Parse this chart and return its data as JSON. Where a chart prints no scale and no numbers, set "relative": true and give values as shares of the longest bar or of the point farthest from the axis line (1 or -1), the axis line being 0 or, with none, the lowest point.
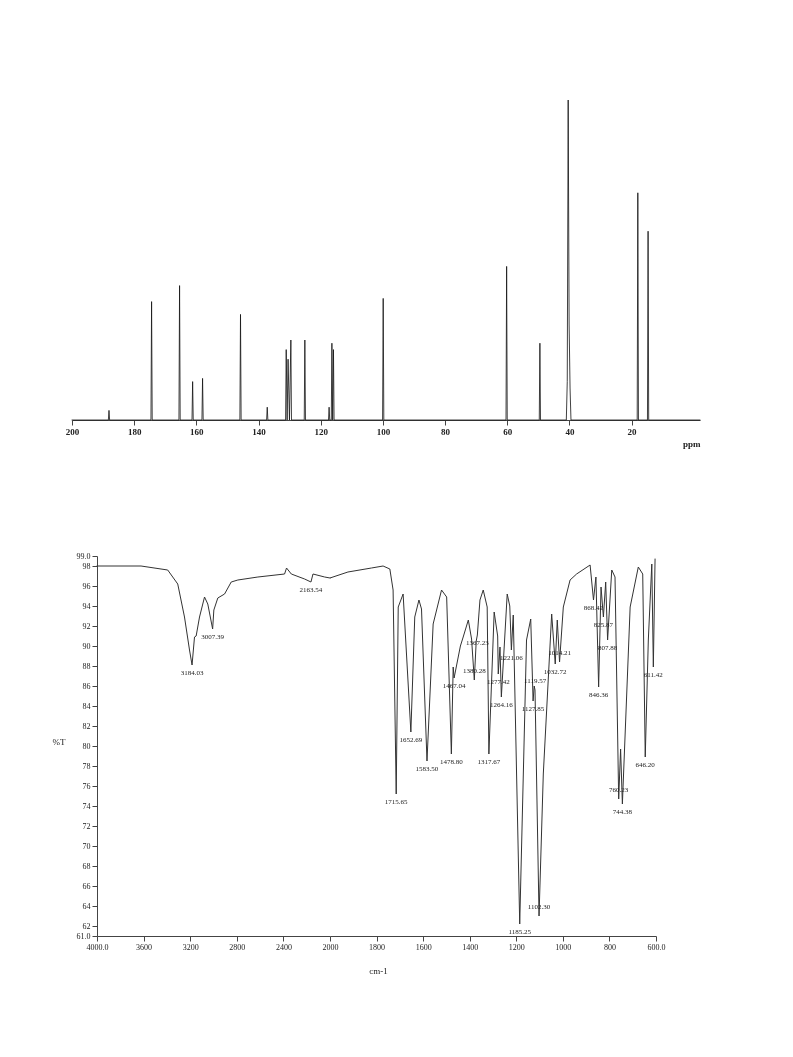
{
  "chart_data": [
    {
      "type": "line",
      "relative": true,
      "xlabel": "ppm",
      "xlim": [
        200,
        -2
      ],
      "xticks": [
        200,
        180,
        160,
        140,
        120,
        100,
        80,
        60,
        40,
        20
      ],
      "series": [
        {
          "color": "#111111",
          "x": [
            200,
            188.3,
            188.1,
            187.9,
            174.6,
            174.4,
            174.2,
            165.6,
            165.4,
            165.2,
            161.4,
            161.2,
            161,
            158.2,
            158,
            157.8,
            146,
            145.8,
            145.6,
            137.4,
            137.2,
            137,
            131.3,
            131.1,
            130.8,
            130.5,
            130.05,
            129.6,
            129.4,
            125.3,
            125.1,
            124.9,
            117.5,
            117.3,
            117.1,
            116.6,
            116.4,
            116.15,
            115.9,
            115.7,
            100.1,
            99.9,
            99.7,
            60.4,
            60.2,
            60,
            49.7,
            49.5,
            49.3,
            41,
            40.7,
            40.4,
            40.1,
            39.8,
            39.5,
            18.2,
            18,
            17.8,
            14.9,
            14.7,
            14.5,
            -2
          ],
          "values": [
            0,
            0,
            0.03,
            0,
            0,
            0.37,
            0,
            0,
            0.42,
            0,
            0,
            0.12,
            0,
            0,
            0.13,
            0,
            0,
            0.33,
            0,
            0,
            0.04,
            0,
            0,
            0.22,
            0,
            0.19,
            0,
            0.25,
            0,
            0,
            0.25,
            0,
            0,
            0.04,
            0,
            0,
            0.24,
            0,
            0.22,
            0,
            0,
            0.38,
            0,
            0,
            0.48,
            0,
            0,
            0.24,
            0,
            0,
            0.12,
            1.0,
            0.3,
            0.1,
            0,
            0,
            0.71,
            0,
            0,
            0.59,
            0,
            0
          ]
        }
      ]
    },
    {
      "type": "line",
      "ylabel": "%T",
      "xlim": [
        4000,
        2000
      ],
      "ylim": [
        61,
        99
      ],
      "xticks": [
        {
          "value": 4000,
          "label": "4000.0"
        },
        3600,
        3200,
        2800,
        2400,
        2000
      ],
      "yticks": [
        {
          "value": 61,
          "label": "61.0"
        },
        62,
        64,
        66,
        68,
        70,
        72,
        74,
        76,
        78,
        80,
        82,
        84,
        86,
        88,
        90,
        92,
        94,
        96,
        98,
        {
          "value": 99,
          "label": "99.0"
        }
      ],
      "series": [
        {
          "color": "#333333",
          "x": [
            4000,
            3622,
            3393,
            3307,
            3249,
            3206,
            3184.03,
            3163,
            3149,
            3120,
            3077,
            3049,
            3007.39,
            2997,
            2963,
            2905,
            2848,
            2791,
            2619,
            2390,
            2373,
            2332,
            2218,
            2163.54,
            2146,
            2046,
            2000
          ],
          "values": [
            98.0,
            98.0,
            97.6,
            96.2,
            92.9,
            89.6,
            88.1,
            90.9,
            91.0,
            92.9,
            94.9,
            94.2,
            91.7,
            93.6,
            94.8,
            95.2,
            96.4,
            96.6,
            96.9,
            97.2,
            97.8,
            97.2,
            96.7,
            96.4,
            97.2,
            96.9,
            96.8
          ]
        }
      ],
      "annotations": [
        {
          "text": "3184.03",
          "x": 3184.03,
          "y": 88.1
        },
        {
          "text": "3007.39",
          "x": 3007.39,
          "y": 91.7
        },
        {
          "text": "2163.54",
          "x": 2163.54,
          "y": 96.4
        }
      ]
    },
    {
      "type": "line",
      "xlabel": "cm-1",
      "xlim": [
        2000,
        600
      ],
      "ylim": [
        61,
        99
      ],
      "tick_labels": "x",
      "xticks": [
        1800,
        1600,
        1400,
        1200,
        1000,
        800,
        {
          "value": 600,
          "label": "600.0"
        }
      ],
      "series": [
        {
          "color": "#333333",
          "x": [
            2000,
            1923,
            1822,
            1772,
            1743,
            1729,
            1715.65,
            1707,
            1686,
            1652.69,
            1636,
            1618,
            1607,
            1583.5,
            1557,
            1521,
            1499,
            1478.8,
            1471,
            1467.04,
            1440,
            1428,
            1406,
            1392,
            1380.28,
            1372,
            1367.23,
            1356,
            1342,
            1325,
            1317.67,
            1295,
            1280,
            1277.42,
            1270,
            1264.16,
            1239,
            1228,
            1221.06,
            1213,
            1185.25,
            1156,
            1138,
            1127.85,
            1123,
            1119.57,
            1102.3,
            1084,
            1048,
            1032.72,
            1024,
            1014.21,
            998,
            969,
            941,
            883,
            868.42,
            858,
            846.36,
            836,
            825.87,
            816,
            807.88,
            790,
            776,
            760.23,
            752,
            744.38,
            711,
            676,
            657,
            646.2,
            633,
            618,
            611.42,
            604
          ],
          "values": [
            96.8,
            97.4,
            97.8,
            98.0,
            97.7,
            95.6,
            75.2,
            93.9,
            95.2,
            81.4,
            92.9,
            94.6,
            93.7,
            78.5,
            92.2,
            95.6,
            94.9,
            79.2,
            87.9,
            86.8,
            90.0,
            90.9,
            92.6,
            90.7,
            86.6,
            90.5,
            91.1,
            94.6,
            95.6,
            93.9,
            79.2,
            93.4,
            91.0,
            87.2,
            89.9,
            84.9,
            95.2,
            94.0,
            89.6,
            93.1,
            62.2,
            90.6,
            92.7,
            84.5,
            86.0,
            85.6,
            63.0,
            77.2,
            93.2,
            88.2,
            92.6,
            88.4,
            93.9,
            96.6,
            97.2,
            98.1,
            94.6,
            96.9,
            85.9,
            95.9,
            92.9,
            96.4,
            90.6,
            97.6,
            96.9,
            74.7,
            79.7,
            74.2,
            93.9,
            97.9,
            97.2,
            78.9,
            90.6,
            98.2,
            87.9,
            98.7
          ]
        }
      ],
      "annotations": [
        {
          "text": "1715.65",
          "x": 1715.65,
          "y": 75.2
        },
        {
          "text": "1652.69",
          "x": 1652.69,
          "y": 81.4
        },
        {
          "text": "1583.50",
          "x": 1583.5,
          "y": 78.5
        },
        {
          "text": "1478.80",
          "x": 1478.8,
          "y": 79.2
        },
        {
          "text": "1467.04",
          "x": 1467.04,
          "y": 86.8
        },
        {
          "text": "1380.28",
          "x": 1380.28,
          "y": 86.6
        },
        {
          "text": "1367.23",
          "x": 1367.23,
          "y": 91.1
        },
        {
          "text": "1317.67",
          "x": 1317.67,
          "y": 79.2
        },
        {
          "text": "1277.42",
          "x": 1277.42,
          "y": 87.2
        },
        {
          "text": "1264.16",
          "x": 1264.16,
          "y": 84.9
        },
        {
          "text": "1221.06",
          "x": 1221.06,
          "y": 89.6
        },
        {
          "text": "1185.25",
          "x": 1185.25,
          "y": 62.2
        },
        {
          "text": "1127.85",
          "x": 1127.85,
          "y": 84.5
        },
        {
          "text": "1119.57",
          "x": 1119.57,
          "y": 85.6
        },
        {
          "text": "1102.30",
          "x": 1102.3,
          "y": 63.0
        },
        {
          "text": "1032.72",
          "x": 1032.72,
          "y": 88.2
        },
        {
          "text": "1014.21",
          "x": 1014.21,
          "y": 88.4
        },
        {
          "text": "868.42",
          "x": 868.42,
          "y": 94.6
        },
        {
          "text": "846.36",
          "x": 846.36,
          "y": 85.9
        },
        {
          "text": "825.87",
          "x": 825.87,
          "y": 92.9
        },
        {
          "text": "807.88",
          "x": 807.88,
          "y": 90.6
        },
        {
          "text": "760.23",
          "x": 760.23,
          "y": 74.7
        },
        {
          "text": "744.38",
          "x": 744.38,
          "y": 74.2
        },
        {
          "text": "646.20",
          "x": 646.2,
          "y": 78.9
        },
        {
          "text": "611.42",
          "x": 611.42,
          "y": 87.9
        }
      ]
    }
  ]
}
